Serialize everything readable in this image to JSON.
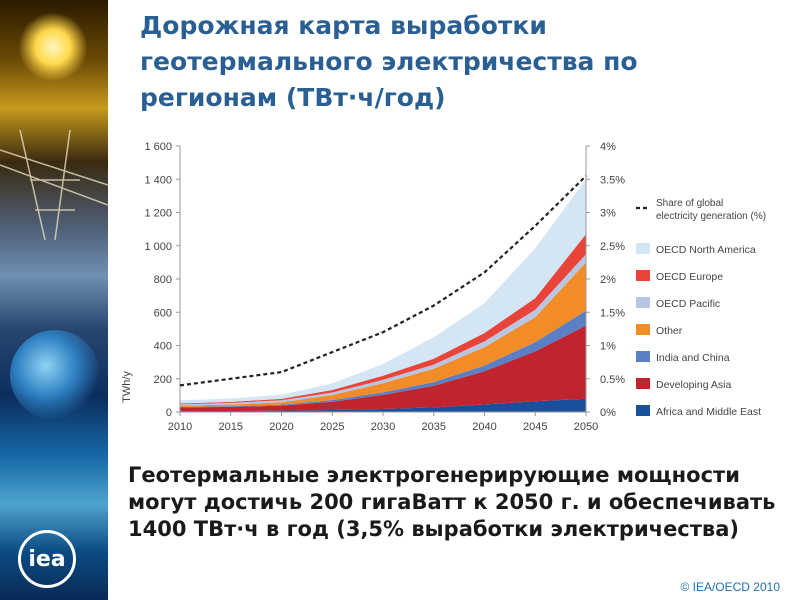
{
  "title": "Дорожная карта выработки геотермального электричества по регионам (ТВт·ч/год)",
  "caption": "Геотермальные электрогенерирующие мощности могут достичь 200 гигаВатт к 2050 г. и обеспечивать 1400 ТВт·ч в год (3,5% выработки электричества)",
  "copyright": "© IEA/OECD 2010",
  "logo_text": "iea",
  "chart_data": {
    "type": "area",
    "stacked": true,
    "x": [
      2010,
      2015,
      2020,
      2025,
      2030,
      2035,
      2040,
      2045,
      2050
    ],
    "x_ticks": [
      "2010",
      "2015",
      "2020",
      "2025",
      "2030",
      "2035",
      "2040",
      "2045",
      "2050"
    ],
    "ylabel": "TWh/y",
    "ylim": [
      0,
      1600
    ],
    "y_ticks": [
      "0",
      "200",
      "400",
      "600",
      "800",
      "1 000",
      "1 200",
      "1 400",
      "1 600"
    ],
    "y2lim": [
      0,
      4
    ],
    "y2_ticks": [
      "0%",
      "0.5%",
      "1%",
      "1.5%",
      "2%",
      "2.5%",
      "3%",
      "3.5%",
      "4%"
    ],
    "series": [
      {
        "name": "Africa and Middle East",
        "color": "#1a4f9c",
        "values": [
          5,
          6,
          8,
          12,
          18,
          28,
          45,
          65,
          80
        ]
      },
      {
        "name": "Developing Asia",
        "color": "#c0242f",
        "values": [
          22,
          25,
          30,
          50,
          85,
          130,
          200,
          300,
          440
        ]
      },
      {
        "name": "India and China",
        "color": "#5a7fc4",
        "values": [
          3,
          4,
          6,
          10,
          15,
          22,
          35,
          55,
          90
        ]
      },
      {
        "name": "Other",
        "color": "#f28c28",
        "values": [
          8,
          10,
          15,
          30,
          55,
          80,
          110,
          150,
          290
        ]
      },
      {
        "name": "OECD Pacific",
        "color": "#b8c6e3",
        "values": [
          8,
          10,
          12,
          15,
          20,
          25,
          35,
          45,
          50
        ]
      },
      {
        "name": "OECD Europe",
        "color": "#e8443a",
        "values": [
          5,
          6,
          8,
          15,
          25,
          35,
          50,
          70,
          120
        ]
      },
      {
        "name": "OECD North America",
        "color": "#d4e5f4",
        "values": [
          19,
          20,
          25,
          40,
          70,
          130,
          180,
          300,
          330
        ]
      }
    ],
    "share_line": {
      "name": "Share of global electricity generation (%)",
      "axis": "right",
      "values": [
        0.4,
        0.5,
        0.6,
        0.9,
        1.2,
        1.6,
        2.1,
        2.8,
        3.55
      ]
    },
    "legend_position": "right",
    "grid": false
  }
}
